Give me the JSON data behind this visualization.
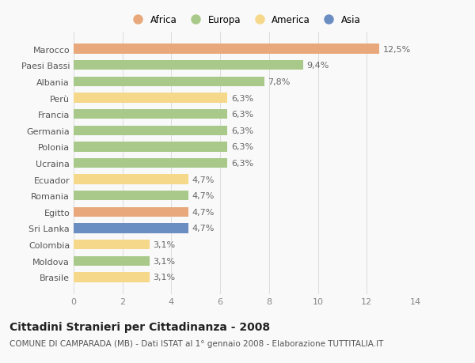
{
  "categories": [
    "Brasile",
    "Moldova",
    "Colombia",
    "Sri Lanka",
    "Egitto",
    "Romania",
    "Ecuador",
    "Ucraina",
    "Polonia",
    "Germania",
    "Francia",
    "Perù",
    "Albania",
    "Paesi Bassi",
    "Marocco"
  ],
  "values": [
    3.1,
    3.1,
    3.1,
    4.7,
    4.7,
    4.7,
    4.7,
    6.3,
    6.3,
    6.3,
    6.3,
    6.3,
    7.8,
    9.4,
    12.5
  ],
  "colors": [
    "#f5d88a",
    "#a8c98a",
    "#f5d88a",
    "#6b8ec2",
    "#e8a87c",
    "#a8c98a",
    "#f5d88a",
    "#a8c98a",
    "#a8c98a",
    "#a8c98a",
    "#a8c98a",
    "#f5d88a",
    "#a8c98a",
    "#a8c98a",
    "#e8a87c"
  ],
  "labels": [
    "3,1%",
    "3,1%",
    "3,1%",
    "4,7%",
    "4,7%",
    "4,7%",
    "4,7%",
    "6,3%",
    "6,3%",
    "6,3%",
    "6,3%",
    "6,3%",
    "7,8%",
    "9,4%",
    "12,5%"
  ],
  "legend": {
    "Africa": "#e8a87c",
    "Europa": "#a8c98a",
    "America": "#f5d88a",
    "Asia": "#6b8ec2"
  },
  "title": "Cittadini Stranieri per Cittadinanza - 2008",
  "subtitle": "COMUNE DI CAMPARADA (MB) - Dati ISTAT al 1° gennaio 2008 - Elaborazione TUTTITALIA.IT",
  "xlim": [
    0,
    14
  ],
  "xticks": [
    0,
    2,
    4,
    6,
    8,
    10,
    12,
    14
  ],
  "background_color": "#f9f9f9",
  "grid_color": "#dddddd",
  "title_fontsize": 10,
  "subtitle_fontsize": 7.5,
  "tick_fontsize": 8,
  "label_fontsize": 8,
  "legend_fontsize": 8.5,
  "bar_height": 0.6
}
